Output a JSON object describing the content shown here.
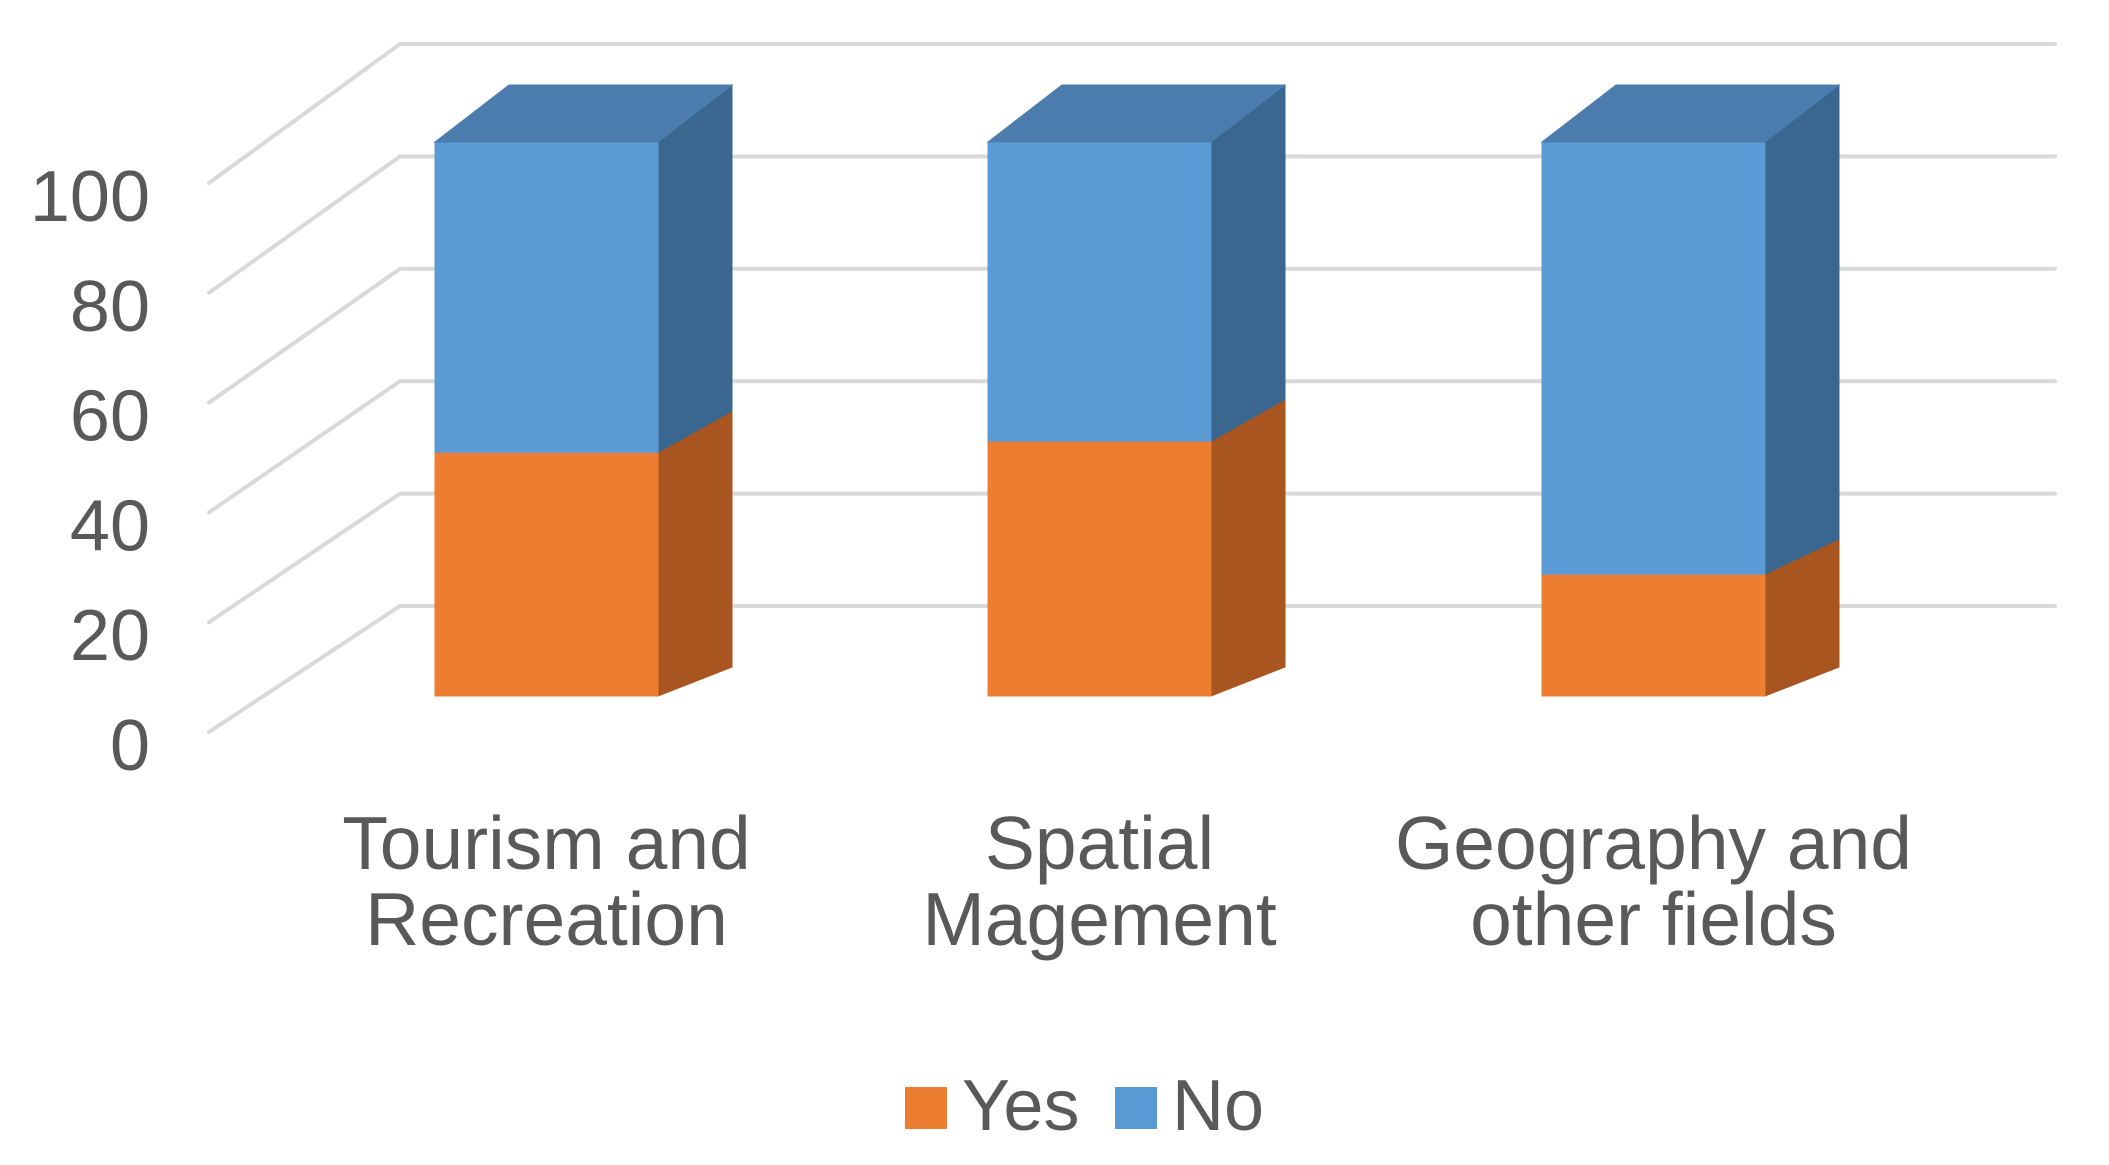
{
  "figure": {
    "background": "#ffffff",
    "description": "3D stacked column chart of survey responses by field"
  },
  "chart_data": {
    "type": "bar",
    "subtype": "3d-100pct-stacked-column",
    "title": "",
    "xlabel": "",
    "ylabel": "",
    "categories": [
      [
        "Tourism and",
        "Recreation"
      ],
      [
        "Spatial",
        "Magement"
      ],
      [
        "Geography and",
        "other fields"
      ]
    ],
    "series": [
      {
        "name": "Yes",
        "color": "#ED7D31",
        "side_color": "#A8551F",
        "top_color": "#C96A28",
        "values": [
          44,
          46,
          22
        ]
      },
      {
        "name": "No",
        "color": "#5B9BD5",
        "side_color": "#3A6790",
        "top_color": "#4B7CAD",
        "values": [
          56,
          54,
          78
        ]
      }
    ],
    "yticks": [
      0,
      20,
      40,
      60,
      80,
      100
    ],
    "ylim": [
      0,
      100
    ],
    "grid": true,
    "legend_position": "bottom",
    "colors": {
      "gridline": "#D9D9D9",
      "text": "#595959"
    }
  }
}
